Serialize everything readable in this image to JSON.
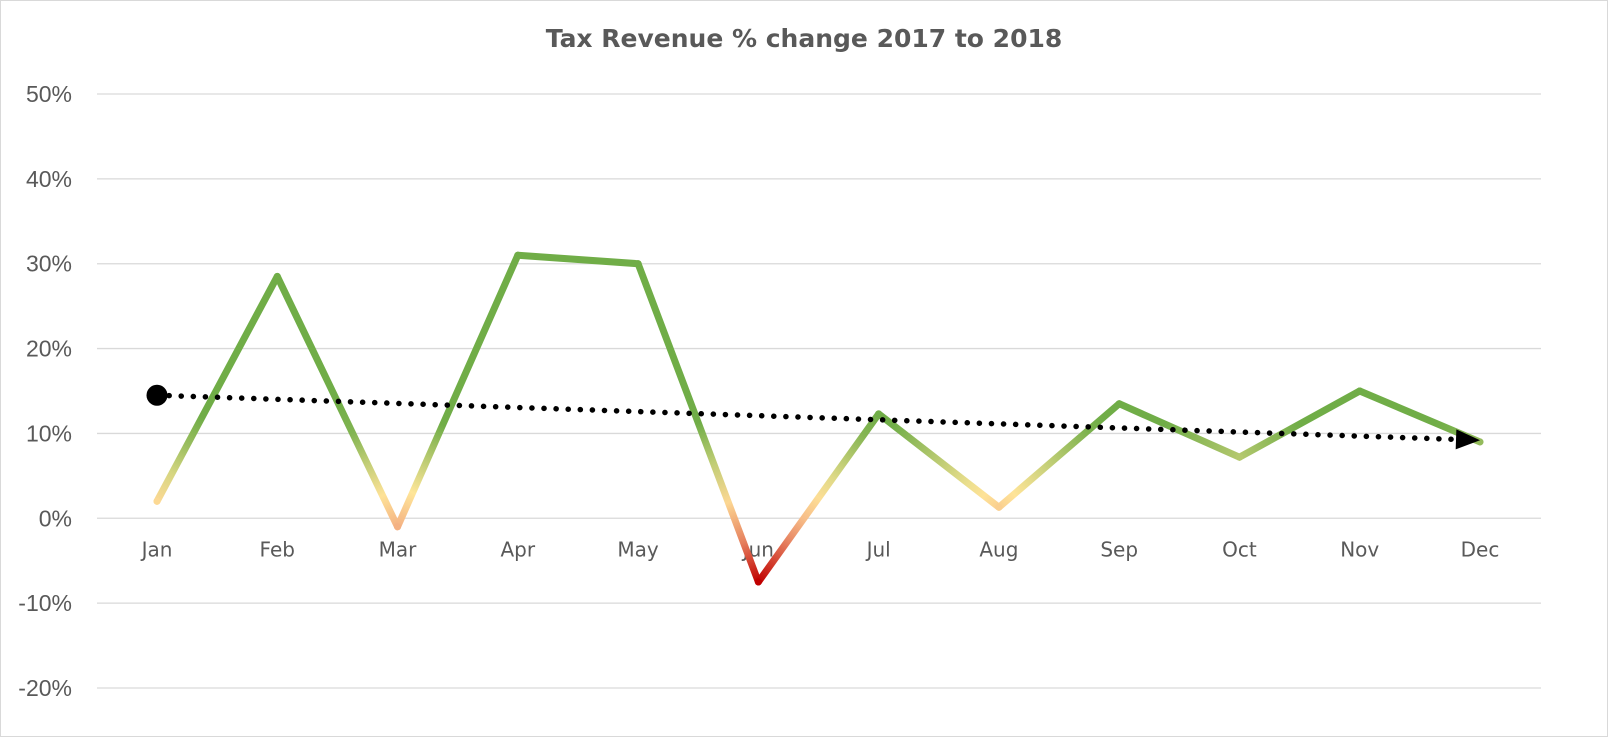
{
  "chart_data": {
    "type": "line",
    "title": "Tax Revenue % change 2017 to 2018",
    "xlabel": "",
    "ylabel": "",
    "categories": [
      "Jan",
      "Feb",
      "Mar",
      "Apr",
      "May",
      "Jun",
      "Jul",
      "Aug",
      "Sep",
      "Oct",
      "Nov",
      "Dec"
    ],
    "series": [
      {
        "values": [
          2.0,
          28.5,
          -1.0,
          31.0,
          30.0,
          -7.5,
          12.3,
          1.3,
          13.5,
          7.2,
          15.0,
          9.0
        ]
      }
    ],
    "trendline": {
      "start": 14.5,
      "end": 9.2,
      "style": "dotted",
      "arrow_end": true,
      "dot_start": true
    },
    "ylim": [
      -20,
      50
    ],
    "yticks": [
      {
        "value": 50,
        "label": "50%"
      },
      {
        "value": 40,
        "label": "40%"
      },
      {
        "value": 30,
        "label": "30%"
      },
      {
        "value": 20,
        "label": "20%"
      },
      {
        "value": 10,
        "label": "10%"
      },
      {
        "value": 0,
        "label": "0%"
      },
      {
        "value": -10,
        "label": "-10%"
      },
      {
        "value": -20,
        "label": "-20%"
      }
    ],
    "grid": true,
    "legend": "none",
    "colors": {
      "high": "#70ad47",
      "mid": "#ffe699",
      "neutral": "#f4b183",
      "low": "#c00000",
      "grid": "#d9d9d9",
      "trend": "#000000"
    }
  }
}
